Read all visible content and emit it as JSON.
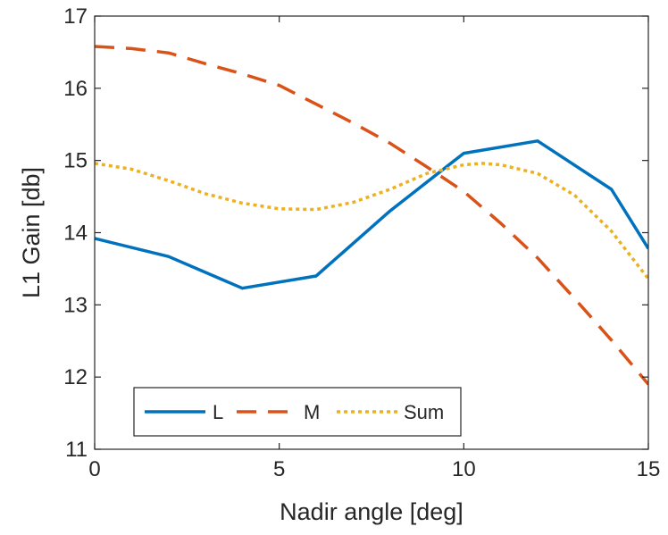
{
  "chart_data": {
    "type": "line",
    "xlabel": "Nadir angle [deg]",
    "ylabel": "L1 Gain [db]",
    "xlim": [
      0,
      15
    ],
    "ylim": [
      11,
      17
    ],
    "xticks": [
      0,
      5,
      10,
      15
    ],
    "yticks": [
      11,
      12,
      13,
      14,
      15,
      16,
      17
    ],
    "grid": false,
    "legend_position": "bottom-left",
    "legend_orientation": "horizontal",
    "series": [
      {
        "name": "L",
        "color": "#0072BD",
        "style": "solid",
        "x": [
          0,
          2,
          4,
          6,
          8,
          10,
          12,
          14,
          15
        ],
        "y": [
          13.92,
          13.67,
          13.23,
          13.4,
          14.3,
          15.1,
          15.27,
          14.6,
          13.78
        ]
      },
      {
        "name": "M",
        "color": "#D95319",
        "style": "dashed",
        "x": [
          0,
          1,
          2,
          3,
          4,
          5,
          6,
          7,
          8,
          9,
          10,
          11,
          12,
          13,
          14,
          15
        ],
        "y": [
          16.58,
          16.55,
          16.49,
          16.34,
          16.2,
          16.04,
          15.78,
          15.52,
          15.24,
          14.91,
          14.57,
          14.13,
          13.65,
          13.09,
          12.51,
          11.9
        ]
      },
      {
        "name": "Sum",
        "color": "#EDB120",
        "style": "dotted",
        "x": [
          0,
          1,
          2,
          3,
          4,
          5,
          6,
          7,
          8,
          9,
          10,
          10.5,
          11,
          12,
          13,
          14,
          15
        ],
        "y": [
          14.96,
          14.88,
          14.72,
          14.54,
          14.41,
          14.33,
          14.32,
          14.42,
          14.6,
          14.82,
          14.94,
          14.96,
          14.94,
          14.82,
          14.52,
          14.02,
          13.36
        ]
      }
    ]
  }
}
